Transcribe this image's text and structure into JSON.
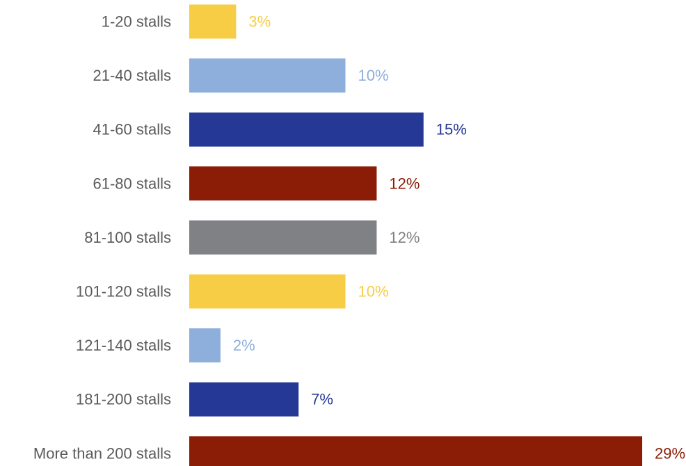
{
  "chart_data": {
    "type": "bar",
    "orientation": "horizontal",
    "categories": [
      "1-20 stalls",
      "21-40 stalls",
      "41-60 stalls",
      "61-80 stalls",
      "81-100 stalls",
      "101-120 stalls",
      "121-140 stalls",
      "181-200 stalls",
      "More than 200 stalls"
    ],
    "values": [
      3,
      10,
      15,
      12,
      12,
      10,
      2,
      7,
      29
    ],
    "value_labels": [
      "3%",
      "10%",
      "15%",
      "12%",
      "12%",
      "10%",
      "2%",
      "7%",
      "29%"
    ],
    "colors": [
      "#f6cd45",
      "#8eaedb",
      "#253896",
      "#8b1c05",
      "#808184",
      "#f6cd45",
      "#8eaedb",
      "#253896",
      "#8b1c05"
    ],
    "label_colors": [
      "#f6cd45",
      "#8eaedb",
      "#253896",
      "#8b1c05",
      "#808184",
      "#f6cd45",
      "#8eaedb",
      "#253896",
      "#8b1c05"
    ],
    "xlim": [
      0,
      29
    ],
    "grid": false,
    "legend": "none",
    "title": "",
    "xlabel": "",
    "ylabel": ""
  }
}
